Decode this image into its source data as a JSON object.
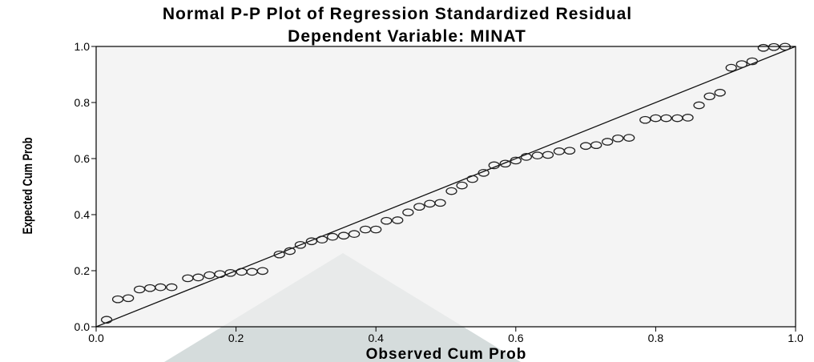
{
  "chart_data": {
    "type": "scatter",
    "title": "Normal P-P Plot of Regression Standardized Residual",
    "subtitle": "Dependent Variable: MINAT",
    "xlabel": "Observed Cum Prob",
    "ylabel": "Expected Cum Prob",
    "xlim": [
      0.0,
      1.0
    ],
    "ylim": [
      0.0,
      1.0
    ],
    "xticks": [
      "0.0",
      "0.2",
      "0.4",
      "0.6",
      "0.8",
      "1.0"
    ],
    "yticks": [
      "0.0",
      "0.2",
      "0.4",
      "0.6",
      "0.8",
      "1.0"
    ],
    "reference_line": {
      "from": [
        0.0,
        0.0
      ],
      "to": [
        1.0,
        1.0
      ]
    },
    "colors": {
      "plot_background": "#f0f0f0",
      "marker_stroke": "#222222",
      "line": "#111111",
      "watermark": "#d5dcdc"
    },
    "points": [
      {
        "x": 0.015,
        "y": 0.025
      },
      {
        "x": 0.031,
        "y": 0.098
      },
      {
        "x": 0.046,
        "y": 0.102
      },
      {
        "x": 0.062,
        "y": 0.133
      },
      {
        "x": 0.077,
        "y": 0.138
      },
      {
        "x": 0.092,
        "y": 0.141
      },
      {
        "x": 0.108,
        "y": 0.141
      },
      {
        "x": 0.131,
        "y": 0.173
      },
      {
        "x": 0.146,
        "y": 0.176
      },
      {
        "x": 0.162,
        "y": 0.184
      },
      {
        "x": 0.177,
        "y": 0.188
      },
      {
        "x": 0.192,
        "y": 0.192
      },
      {
        "x": 0.208,
        "y": 0.196
      },
      {
        "x": 0.223,
        "y": 0.196
      },
      {
        "x": 0.238,
        "y": 0.199
      },
      {
        "x": 0.262,
        "y": 0.258
      },
      {
        "x": 0.277,
        "y": 0.27
      },
      {
        "x": 0.292,
        "y": 0.292
      },
      {
        "x": 0.308,
        "y": 0.305
      },
      {
        "x": 0.323,
        "y": 0.311
      },
      {
        "x": 0.338,
        "y": 0.321
      },
      {
        "x": 0.354,
        "y": 0.325
      },
      {
        "x": 0.369,
        "y": 0.331
      },
      {
        "x": 0.385,
        "y": 0.347
      },
      {
        "x": 0.4,
        "y": 0.347
      },
      {
        "x": 0.415,
        "y": 0.378
      },
      {
        "x": 0.431,
        "y": 0.38
      },
      {
        "x": 0.446,
        "y": 0.408
      },
      {
        "x": 0.462,
        "y": 0.428
      },
      {
        "x": 0.477,
        "y": 0.439
      },
      {
        "x": 0.492,
        "y": 0.442
      },
      {
        "x": 0.508,
        "y": 0.484
      },
      {
        "x": 0.523,
        "y": 0.504
      },
      {
        "x": 0.538,
        "y": 0.527
      },
      {
        "x": 0.554,
        "y": 0.549
      },
      {
        "x": 0.569,
        "y": 0.576
      },
      {
        "x": 0.585,
        "y": 0.582
      },
      {
        "x": 0.6,
        "y": 0.593
      },
      {
        "x": 0.615,
        "y": 0.606
      },
      {
        "x": 0.631,
        "y": 0.611
      },
      {
        "x": 0.646,
        "y": 0.613
      },
      {
        "x": 0.662,
        "y": 0.626
      },
      {
        "x": 0.677,
        "y": 0.628
      },
      {
        "x": 0.7,
        "y": 0.645
      },
      {
        "x": 0.715,
        "y": 0.648
      },
      {
        "x": 0.731,
        "y": 0.66
      },
      {
        "x": 0.746,
        "y": 0.672
      },
      {
        "x": 0.762,
        "y": 0.674
      },
      {
        "x": 0.785,
        "y": 0.738
      },
      {
        "x": 0.8,
        "y": 0.744
      },
      {
        "x": 0.815,
        "y": 0.744
      },
      {
        "x": 0.831,
        "y": 0.744
      },
      {
        "x": 0.846,
        "y": 0.746
      },
      {
        "x": 0.862,
        "y": 0.79
      },
      {
        "x": 0.877,
        "y": 0.822
      },
      {
        "x": 0.892,
        "y": 0.835
      },
      {
        "x": 0.908,
        "y": 0.924
      },
      {
        "x": 0.923,
        "y": 0.937
      },
      {
        "x": 0.938,
        "y": 0.947
      },
      {
        "x": 0.954,
        "y": 0.995
      },
      {
        "x": 0.969,
        "y": 0.998
      },
      {
        "x": 0.985,
        "y": 0.999
      }
    ]
  }
}
